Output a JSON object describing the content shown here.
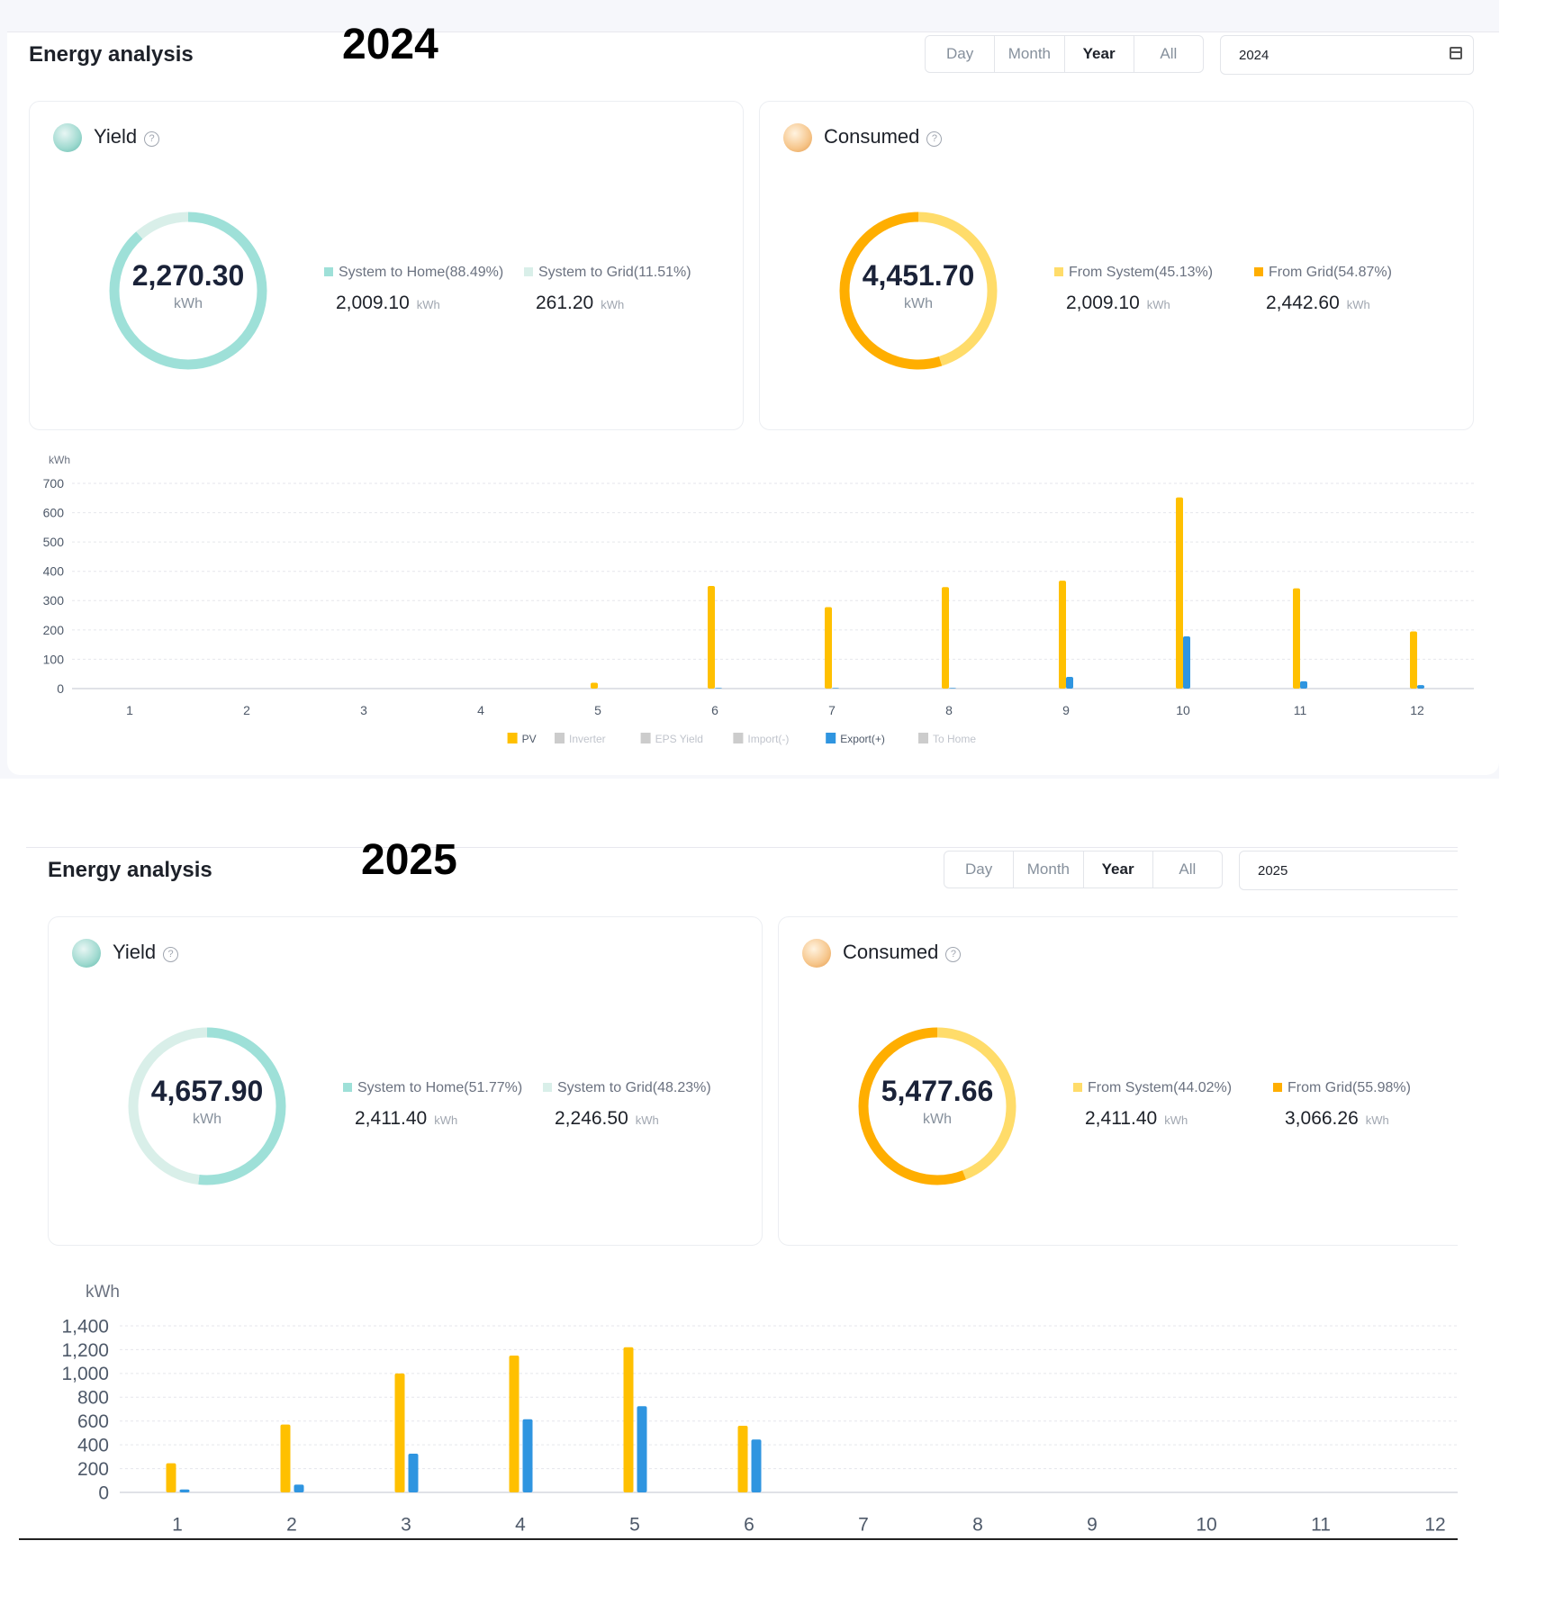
{
  "tabs": [
    "Day",
    "Month",
    "Year",
    "All"
  ],
  "active_tab": "Year",
  "panels": [
    {
      "title": "Energy analysis",
      "year_label": "2024",
      "date_value": "2024",
      "yield": {
        "title": "Yield",
        "total": "2,270.30",
        "unit": "kWh",
        "items": [
          {
            "label": "System to Home(88.49%)",
            "value": "2,009.10",
            "unit": "kWh",
            "color": "#9ee0d8"
          },
          {
            "label": "System to Grid(11.51%)",
            "value": "261.20",
            "unit": "kWh",
            "color": "#d9efe9"
          }
        ],
        "fractions": [
          0.8849,
          0.1151
        ]
      },
      "consumed": {
        "title": "Consumed",
        "total": "4,451.70",
        "unit": "kWh",
        "items": [
          {
            "label": "From System(45.13%)",
            "value": "2,009.10",
            "unit": "kWh",
            "color": "#ffdc6a"
          },
          {
            "label": "From Grid(54.87%)",
            "value": "2,442.60",
            "unit": "kWh",
            "color": "#ffae00"
          }
        ],
        "fractions": [
          0.4513,
          0.5487
        ]
      },
      "chart_data": {
        "type": "bar",
        "ylabel": "kWh",
        "categories": [
          "1",
          "2",
          "3",
          "4",
          "5",
          "6",
          "7",
          "8",
          "9",
          "10",
          "11",
          "12"
        ],
        "yticks": [
          "0",
          "100",
          "200",
          "300",
          "400",
          "500",
          "600",
          "700"
        ],
        "ylim": [
          0,
          700
        ],
        "grid": true,
        "legend_placement": "bottom",
        "legend": [
          {
            "name": "PV",
            "color": "#ffc000",
            "active": true
          },
          {
            "name": "Inverter",
            "color": "#cccccc",
            "active": false
          },
          {
            "name": "EPS Yield",
            "color": "#cccccc",
            "active": false
          },
          {
            "name": "Import(-)",
            "color": "#cccccc",
            "active": false
          },
          {
            "name": "Export(+)",
            "color": "#2f95e0",
            "active": true
          },
          {
            "name": "To Home",
            "color": "#cccccc",
            "active": false
          }
        ],
        "series": [
          {
            "name": "PV",
            "color": "#ffc000",
            "values": [
              0,
              0,
              0,
              0,
              20,
              350,
              278,
              346,
              368,
              652,
              342,
              195
            ]
          },
          {
            "name": "Export(+)",
            "color": "#2f95e0",
            "values": [
              0,
              0,
              0,
              0,
              0,
              2,
              2,
              2,
              40,
              178,
              25,
              12
            ]
          }
        ]
      }
    },
    {
      "title": "Energy analysis",
      "year_label": "2025",
      "date_value": "2025",
      "yield": {
        "title": "Yield",
        "total": "4,657.90",
        "unit": "kWh",
        "items": [
          {
            "label": "System to Home(51.77%)",
            "value": "2,411.40",
            "unit": "kWh",
            "color": "#9ee0d8"
          },
          {
            "label": "System to Grid(48.23%)",
            "value": "2,246.50",
            "unit": "kWh",
            "color": "#d9efe9"
          }
        ],
        "fractions": [
          0.5177,
          0.4823
        ]
      },
      "consumed": {
        "title": "Consumed",
        "total": "5,477.66",
        "unit": "kWh",
        "items": [
          {
            "label": "From System(44.02%)",
            "value": "2,411.40",
            "unit": "kWh",
            "color": "#ffdc6a"
          },
          {
            "label": "From Grid(55.98%)",
            "value": "3,066.26",
            "unit": "kWh",
            "color": "#ffae00"
          }
        ],
        "fractions": [
          0.4402,
          0.5598
        ]
      },
      "chart_data": {
        "type": "bar",
        "ylabel": "kWh",
        "categories": [
          "1",
          "2",
          "3",
          "4",
          "5",
          "6",
          "7",
          "8",
          "9",
          "10",
          "11",
          "12"
        ],
        "yticks": [
          "0",
          "200",
          "400",
          "600",
          "800",
          "1,000",
          "1,200",
          "1,400"
        ],
        "ylim": [
          0,
          1400
        ],
        "grid": true,
        "series": [
          {
            "name": "PV",
            "color": "#ffc000",
            "values": [
              245,
              570,
              1000,
              1150,
              1220,
              560,
              0,
              0,
              0,
              0,
              0,
              0
            ]
          },
          {
            "name": "Export(+)",
            "color": "#2f95e0",
            "values": [
              25,
              65,
              325,
              615,
              725,
              445,
              0,
              0,
              0,
              0,
              0,
              0
            ]
          }
        ]
      }
    }
  ]
}
